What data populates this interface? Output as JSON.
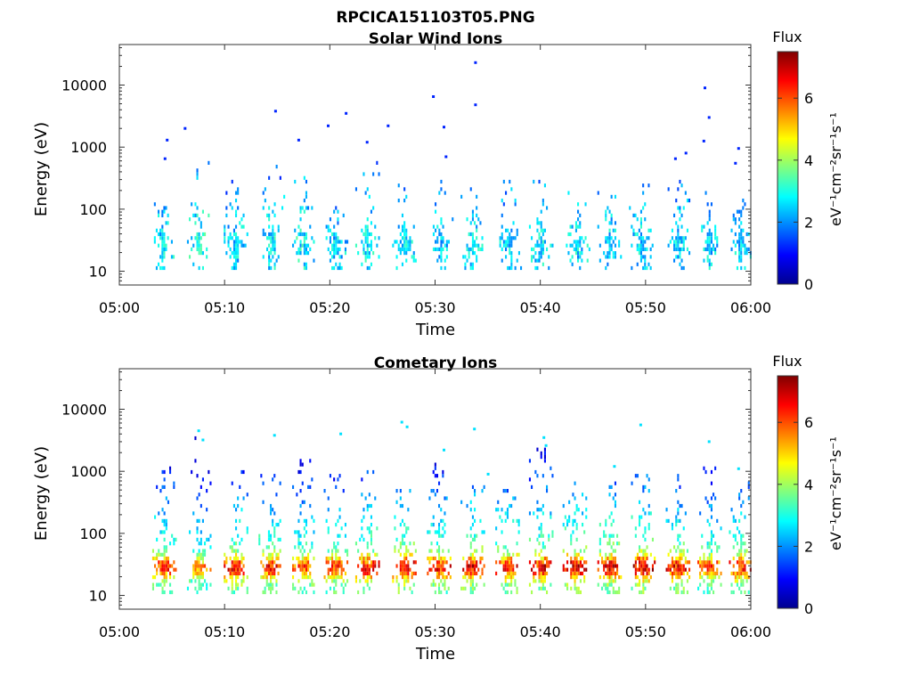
{
  "figure": {
    "title": "RPCICA151103T05.PNG"
  },
  "chart_data": [
    {
      "type": "heatmap",
      "title": "Solar Wind Ions",
      "xlabel": "Time",
      "ylabel": "Energy (eV)",
      "x_ticks": [
        "05:00",
        "05:10",
        "05:20",
        "05:30",
        "05:40",
        "05:50",
        "06:00"
      ],
      "x_range_minutes": [
        0,
        60
      ],
      "y_scale": "log",
      "y_ticks": [
        "10",
        "100",
        "1000",
        "10000"
      ],
      "y_range": [
        6,
        45000
      ],
      "colorbar": {
        "title": "Flux",
        "label": "eV⁻¹cm⁻²sr⁻¹s⁻¹",
        "ticks": [
          "0",
          "2",
          "4",
          "6"
        ],
        "range": [
          0,
          7.5
        ],
        "colormap": "jet"
      },
      "bursts": [
        {
          "t": 4.0,
          "peak": 3.3,
          "top": 180
        },
        {
          "t": 7.5,
          "peak": 3.6,
          "top": 600
        },
        {
          "t": 11.0,
          "peak": 3.2,
          "top": 300
        },
        {
          "t": 14.5,
          "peak": 3.4,
          "top": 500
        },
        {
          "t": 17.5,
          "peak": 3.5,
          "top": 400
        },
        {
          "t": 20.5,
          "peak": 3.2,
          "top": 350
        },
        {
          "t": 23.5,
          "peak": 3.4,
          "top": 600
        },
        {
          "t": 27.0,
          "peak": 3.3,
          "top": 250
        },
        {
          "t": 30.5,
          "peak": 3.1,
          "top": 300
        },
        {
          "t": 33.5,
          "peak": 3.3,
          "top": 300
        },
        {
          "t": 37.0,
          "peak": 3.2,
          "top": 300
        },
        {
          "t": 40.0,
          "peak": 3.4,
          "top": 600
        },
        {
          "t": 43.5,
          "peak": 3.3,
          "top": 200
        },
        {
          "t": 46.5,
          "peak": 3.2,
          "top": 200
        },
        {
          "t": 49.5,
          "peak": 3.3,
          "top": 1000
        },
        {
          "t": 53.0,
          "peak": 3.2,
          "top": 300
        },
        {
          "t": 56.0,
          "peak": 3.2,
          "top": 200
        },
        {
          "t": 59.0,
          "peak": 3.2,
          "top": 150
        }
      ],
      "sparse_points": [
        {
          "t": 33.8,
          "e": 23000
        },
        {
          "t": 29.8,
          "e": 6500
        },
        {
          "t": 33.8,
          "e": 4800
        },
        {
          "t": 14.8,
          "e": 3800
        },
        {
          "t": 21.5,
          "e": 3500
        },
        {
          "t": 30.8,
          "e": 2100
        },
        {
          "t": 25.5,
          "e": 2200
        },
        {
          "t": 6.2,
          "e": 2000
        },
        {
          "t": 19.8,
          "e": 2200
        },
        {
          "t": 4.5,
          "e": 1300
        },
        {
          "t": 4.3,
          "e": 650
        },
        {
          "t": 55.6,
          "e": 9000
        },
        {
          "t": 56.0,
          "e": 3000
        },
        {
          "t": 58.8,
          "e": 950
        },
        {
          "t": 58.5,
          "e": 550
        },
        {
          "t": 53.8,
          "e": 800
        },
        {
          "t": 52.8,
          "e": 650
        },
        {
          "t": 55.5,
          "e": 1250
        },
        {
          "t": 31.0,
          "e": 700
        },
        {
          "t": 17.0,
          "e": 1300
        },
        {
          "t": 23.5,
          "e": 1200
        }
      ]
    },
    {
      "type": "heatmap",
      "title": "Cometary Ions",
      "xlabel": "Time",
      "ylabel": "Energy (eV)",
      "x_ticks": [
        "05:00",
        "05:10",
        "05:20",
        "05:30",
        "05:40",
        "05:50",
        "06:00"
      ],
      "x_range_minutes": [
        0,
        60
      ],
      "y_scale": "log",
      "y_ticks": [
        "10",
        "100",
        "1000",
        "10000"
      ],
      "y_range": [
        6,
        45000
      ],
      "colorbar": {
        "title": "Flux",
        "label": "eV⁻¹cm⁻²sr⁻¹s⁻¹",
        "ticks": [
          "0",
          "2",
          "4",
          "6"
        ],
        "range": [
          0,
          7.5
        ],
        "colormap": "jet"
      },
      "bursts": [
        {
          "t": 4.2,
          "peak": 6.2,
          "top": 1200
        },
        {
          "t": 7.5,
          "peak": 5.4,
          "top": 4000
        },
        {
          "t": 11.0,
          "peak": 6.5,
          "top": 1000
        },
        {
          "t": 14.3,
          "peak": 6.3,
          "top": 1000
        },
        {
          "t": 17.5,
          "peak": 6.0,
          "top": 1500
        },
        {
          "t": 20.5,
          "peak": 6.1,
          "top": 1000
        },
        {
          "t": 23.5,
          "peak": 6.6,
          "top": 1200
        },
        {
          "t": 27.0,
          "peak": 6.8,
          "top": 800
        },
        {
          "t": 30.3,
          "peak": 6.4,
          "top": 1800
        },
        {
          "t": 33.5,
          "peak": 6.7,
          "top": 800
        },
        {
          "t": 36.8,
          "peak": 6.5,
          "top": 600
        },
        {
          "t": 40.0,
          "peak": 6.6,
          "top": 2500
        },
        {
          "t": 43.2,
          "peak": 6.8,
          "top": 900
        },
        {
          "t": 46.5,
          "peak": 6.7,
          "top": 700
        },
        {
          "t": 49.7,
          "peak": 6.9,
          "top": 1600
        },
        {
          "t": 53.0,
          "peak": 6.5,
          "top": 1000
        },
        {
          "t": 56.0,
          "peak": 6.0,
          "top": 1200
        },
        {
          "t": 59.0,
          "peak": 6.4,
          "top": 800
        }
      ],
      "sparse_points": [
        {
          "t": 7.5,
          "e": 4500
        },
        {
          "t": 7.9,
          "e": 3200
        },
        {
          "t": 14.7,
          "e": 3800
        },
        {
          "t": 21.0,
          "e": 4000
        },
        {
          "t": 26.8,
          "e": 6200
        },
        {
          "t": 27.3,
          "e": 5200
        },
        {
          "t": 33.7,
          "e": 4800
        },
        {
          "t": 40.3,
          "e": 3500
        },
        {
          "t": 49.5,
          "e": 5600
        },
        {
          "t": 56.0,
          "e": 3000
        },
        {
          "t": 30.8,
          "e": 2200
        },
        {
          "t": 40.5,
          "e": 2600
        },
        {
          "t": 47.0,
          "e": 1200
        },
        {
          "t": 35.0,
          "e": 900
        },
        {
          "t": 58.8,
          "e": 1100
        }
      ]
    }
  ]
}
